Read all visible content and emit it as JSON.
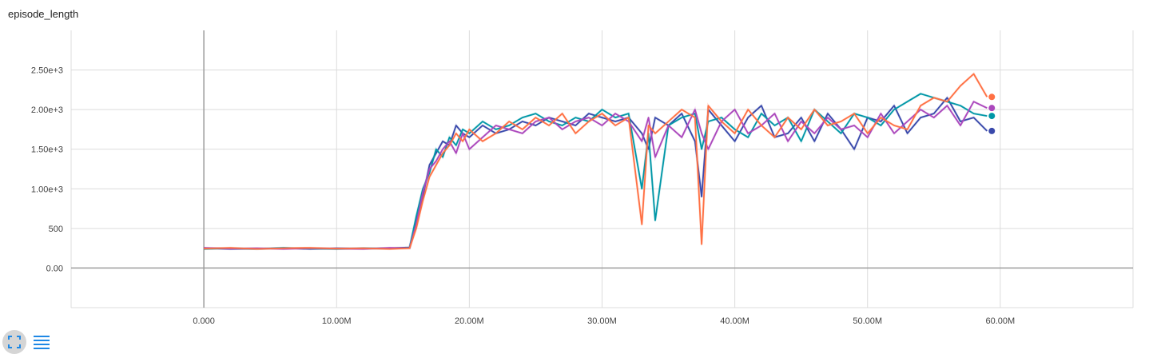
{
  "card": {
    "title": "episode_length",
    "expand_icon": "fullscreen-icon",
    "data_table_icon": "list-icon"
  },
  "colors": {
    "series": [
      "#3949ab",
      "#0097a7",
      "#ab47bc",
      "#ff7043"
    ],
    "grid": "#dcdcdc",
    "axis": "#9e9e9e",
    "button_bg": "#d5d5d5",
    "icon_blue": "#1e88e5"
  },
  "chart_data": {
    "type": "line",
    "title": "episode_length",
    "xlabel": "",
    "ylabel": "",
    "xlim": [
      -10000000,
      70000000
    ],
    "ylim": [
      -500,
      3000
    ],
    "x_ticks": [
      0,
      10000000,
      20000000,
      30000000,
      40000000,
      50000000,
      60000000
    ],
    "x_tick_labels": [
      "0.000",
      "10.00M",
      "20.00M",
      "30.00M",
      "40.00M",
      "50.00M",
      "60.00M"
    ],
    "y_ticks": [
      0,
      500,
      1000,
      1500,
      2000,
      2500
    ],
    "y_tick_labels": [
      "0.00",
      "500",
      "1.00e+3",
      "1.50e+3",
      "2.00e+3",
      "2.50e+3"
    ],
    "grid": true,
    "legend": "none",
    "series": [
      {
        "x": [
          0,
          2000000,
          4000000,
          6000000,
          8000000,
          10000000,
          12000000,
          14000000,
          15500000,
          16000000,
          16500000,
          17000000,
          17500000,
          18000000,
          18500000,
          19000000,
          19500000,
          20000000,
          21000000,
          22000000,
          23000000,
          24000000,
          25000000,
          26000000,
          27000000,
          28000000,
          29000000,
          30000000,
          31000000,
          32000000,
          33000000,
          33500000,
          34000000,
          35000000,
          36000000,
          37000000,
          37500000,
          38000000,
          39000000,
          40000000,
          41000000,
          42000000,
          43000000,
          44000000,
          45000000,
          46000000,
          47000000,
          48000000,
          49000000,
          50000000,
          51000000,
          52000000,
          53000000,
          54000000,
          55000000,
          56000000,
          57000000,
          58000000,
          59000000
        ],
        "y": [
          250,
          240,
          245,
          250,
          240,
          250,
          245,
          250,
          260,
          600,
          900,
          1300,
          1450,
          1600,
          1550,
          1800,
          1700,
          1650,
          1800,
          1700,
          1750,
          1850,
          1800,
          1900,
          1850,
          1800,
          1950,
          1900,
          1850,
          1900,
          1700,
          1500,
          1900,
          1800,
          1950,
          1600,
          900,
          2000,
          1800,
          1600,
          1900,
          2050,
          1650,
          1700,
          1900,
          1600,
          1950,
          1750,
          1500,
          1900,
          1850,
          2050,
          1700,
          1900,
          1950,
          2150,
          1850,
          1900,
          1730
        ]
      },
      {
        "x": [
          0,
          2000000,
          4000000,
          6000000,
          8000000,
          10000000,
          12000000,
          14000000,
          15500000,
          16000000,
          16500000,
          17000000,
          17500000,
          18000000,
          18500000,
          19000000,
          19500000,
          20000000,
          21000000,
          22000000,
          23000000,
          24000000,
          25000000,
          26000000,
          27000000,
          28000000,
          29000000,
          30000000,
          31000000,
          32000000,
          33000000,
          33500000,
          34000000,
          35000000,
          36000000,
          37000000,
          37500000,
          38000000,
          39000000,
          40000000,
          41000000,
          42000000,
          43000000,
          44000000,
          45000000,
          46000000,
          47000000,
          48000000,
          49000000,
          50000000,
          51000000,
          52000000,
          53000000,
          54000000,
          55000000,
          56000000,
          57000000,
          58000000,
          59000000
        ],
        "y": [
          240,
          250,
          240,
          255,
          245,
          240,
          250,
          245,
          255,
          650,
          1000,
          1200,
          1500,
          1400,
          1650,
          1550,
          1750,
          1700,
          1850,
          1750,
          1800,
          1900,
          1950,
          1850,
          1800,
          1900,
          1850,
          2000,
          1900,
          1950,
          1000,
          1700,
          600,
          1800,
          1900,
          1950,
          1500,
          1850,
          1900,
          1750,
          1650,
          1950,
          1800,
          1900,
          1600,
          2000,
          1850,
          1700,
          1950,
          1900,
          1800,
          2000,
          2100,
          2200,
          2150,
          2100,
          2050,
          1950,
          1920
        ]
      },
      {
        "x": [
          0,
          2000000,
          4000000,
          6000000,
          8000000,
          10000000,
          12000000,
          14000000,
          15500000,
          16000000,
          16500000,
          17000000,
          17500000,
          18000000,
          18500000,
          19000000,
          19500000,
          20000000,
          21000000,
          22000000,
          23000000,
          24000000,
          25000000,
          26000000,
          27000000,
          28000000,
          29000000,
          30000000,
          31000000,
          32000000,
          33000000,
          33500000,
          34000000,
          35000000,
          36000000,
          37000000,
          37500000,
          38000000,
          39000000,
          40000000,
          41000000,
          42000000,
          43000000,
          44000000,
          45000000,
          46000000,
          47000000,
          48000000,
          49000000,
          50000000,
          51000000,
          52000000,
          53000000,
          54000000,
          55000000,
          56000000,
          57000000,
          58000000,
          59000000
        ],
        "y": [
          255,
          245,
          250,
          240,
          250,
          245,
          240,
          255,
          250,
          550,
          950,
          1250,
          1350,
          1500,
          1600,
          1450,
          1700,
          1500,
          1650,
          1800,
          1750,
          1700,
          1850,
          1900,
          1750,
          1850,
          1900,
          1800,
          1950,
          1850,
          1600,
          1900,
          1400,
          1800,
          1650,
          2000,
          1700,
          1500,
          1850,
          2000,
          1700,
          1800,
          1950,
          1600,
          1850,
          1700,
          1900,
          1750,
          1800,
          1650,
          1950,
          1700,
          1850,
          2000,
          1900,
          2050,
          1800,
          2100,
          2020
        ]
      },
      {
        "x": [
          0,
          2000000,
          4000000,
          6000000,
          8000000,
          10000000,
          12000000,
          14000000,
          15500000,
          16000000,
          16500000,
          17000000,
          17500000,
          18000000,
          18500000,
          19000000,
          19500000,
          20000000,
          21000000,
          22000000,
          23000000,
          24000000,
          25000000,
          26000000,
          27000000,
          28000000,
          29000000,
          30000000,
          31000000,
          32000000,
          33000000,
          33500000,
          34000000,
          35000000,
          36000000,
          37000000,
          37500000,
          38000000,
          39000000,
          40000000,
          41000000,
          42000000,
          43000000,
          44000000,
          45000000,
          46000000,
          47000000,
          48000000,
          49000000,
          50000000,
          51000000,
          52000000,
          53000000,
          54000000,
          55000000,
          56000000,
          57000000,
          58000000,
          59000000
        ],
        "y": [
          245,
          255,
          240,
          250,
          255,
          245,
          250,
          240,
          250,
          500,
          850,
          1150,
          1300,
          1450,
          1550,
          1700,
          1600,
          1750,
          1600,
          1700,
          1850,
          1750,
          1900,
          1800,
          1950,
          1700,
          1850,
          1950,
          1800,
          1900,
          550,
          1800,
          1700,
          1850,
          2000,
          1900,
          300,
          2050,
          1850,
          1700,
          2000,
          1800,
          1650,
          1900,
          1750,
          2000,
          1800,
          1850,
          1950,
          1700,
          1900,
          1800,
          1750,
          2050,
          2150,
          2100,
          2300,
          2450,
          2160
        ]
      }
    ]
  }
}
